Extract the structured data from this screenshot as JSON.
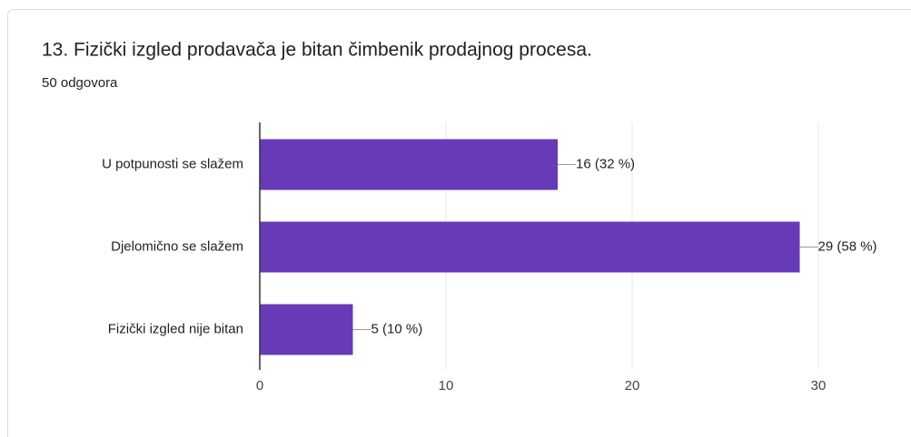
{
  "chart_data": {
    "type": "barh",
    "title": "13. Fizički izgled prodavača je bitan čimbenik prodajnog procesa.",
    "subtitle": "50 odgovora",
    "categories": [
      "U potpunosti se slažem",
      "Djelomično se slažem",
      "Fizički izgled nije bitan"
    ],
    "values": [
      16,
      29,
      5
    ],
    "value_labels": [
      "16 (32 %)",
      "29 (58 %)",
      "5 (10 %)"
    ],
    "color": "#673ab7",
    "xlim": [
      0,
      30
    ],
    "xticks": [
      0,
      10,
      20,
      30
    ],
    "grid": true
  }
}
